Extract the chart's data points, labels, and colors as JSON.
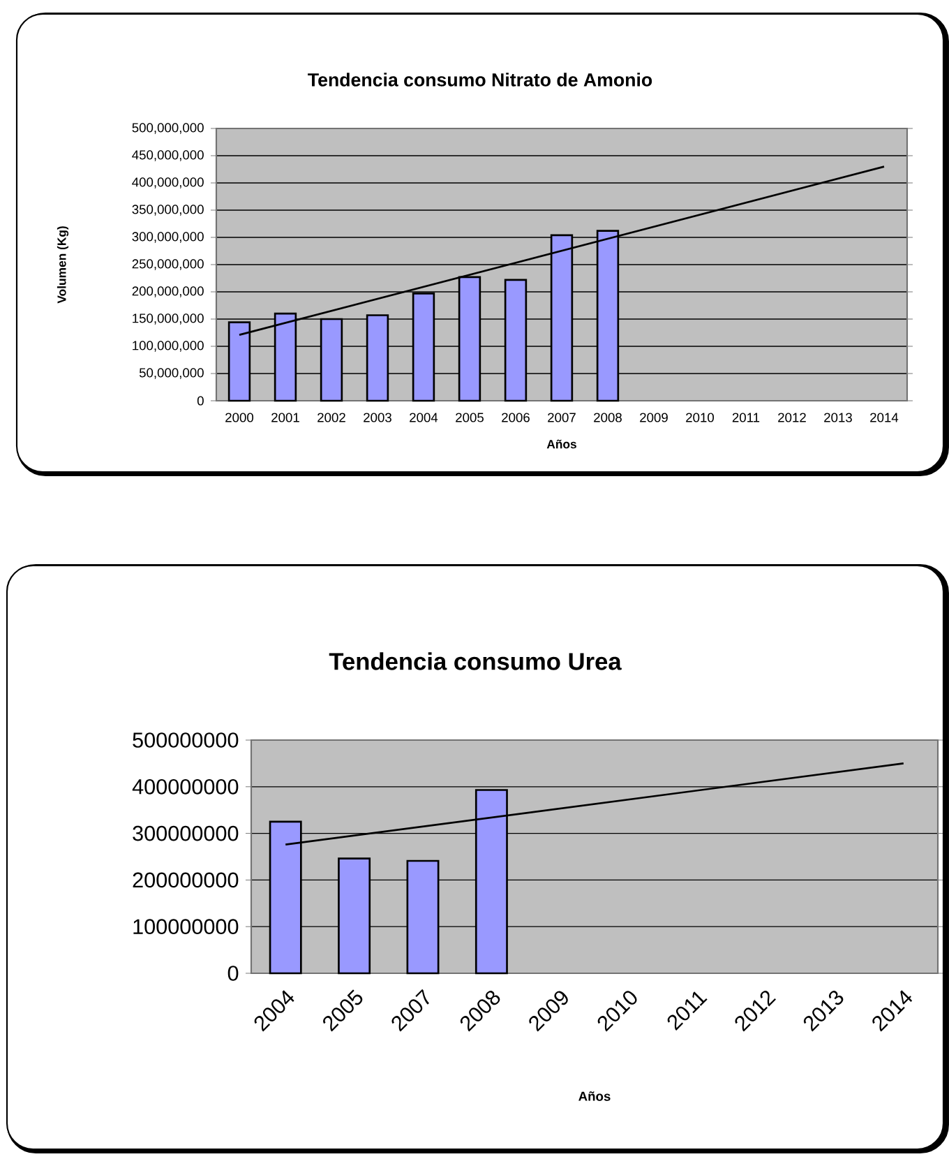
{
  "chart_data": [
    {
      "type": "bar",
      "title": "Tendencia consumo Nitrato de Amonio",
      "xlabel": "Años",
      "ylabel": "Volumen (Kg)",
      "categories": [
        "2000",
        "2001",
        "2002",
        "2003",
        "2004",
        "2005",
        "2006",
        "2007",
        "2008",
        "2009",
        "2010",
        "2011",
        "2012",
        "2013",
        "2014"
      ],
      "series": [
        {
          "color": "#9999ff",
          "values": [
            144000000,
            160000000,
            150000000,
            157000000,
            197000000,
            227000000,
            222000000,
            304000000,
            312000000,
            null,
            null,
            null,
            null,
            null,
            null
          ]
        },
        {
          "type": "line",
          "color": "#000000",
          "values": [
            121000000,
            null,
            null,
            null,
            null,
            null,
            null,
            null,
            null,
            null,
            null,
            null,
            null,
            null,
            430000000
          ]
        }
      ],
      "ylim": [
        0,
        500000000
      ],
      "yticks": [
        {
          "value": 0,
          "label": "0"
        },
        {
          "value": 50000000,
          "label": "50,000,000"
        },
        {
          "value": 100000000,
          "label": "100,000,000"
        },
        {
          "value": 150000000,
          "label": "150,000,000"
        },
        {
          "value": 200000000,
          "label": "200,000,000"
        },
        {
          "value": 250000000,
          "label": "250,000,000"
        },
        {
          "value": 300000000,
          "label": "300,000,000"
        },
        {
          "value": 350000000,
          "label": "350,000,000"
        },
        {
          "value": 400000000,
          "label": "400,000,000"
        },
        {
          "value": 450000000,
          "label": "450,000,000"
        },
        {
          "value": 500000000,
          "label": "500,000,000"
        }
      ],
      "grid": "y"
    },
    {
      "type": "bar",
      "title": "Tendencia consumo Urea",
      "xlabel": "Años",
      "categories": [
        "2004",
        "2005",
        "2007",
        "2008",
        "2009",
        "2010",
        "2011",
        "2012",
        "2013",
        "2014"
      ],
      "series": [
        {
          "color": "#9999ff",
          "values": [
            325000000,
            246000000,
            241000000,
            393000000,
            null,
            null,
            null,
            null,
            null,
            null
          ]
        },
        {
          "type": "line",
          "color": "#000000",
          "values": [
            276000000,
            null,
            null,
            null,
            null,
            null,
            null,
            null,
            null,
            450000000
          ]
        }
      ],
      "ylim": [
        0,
        500000000
      ],
      "yticks": [
        0,
        100000000,
        200000000,
        300000000,
        400000000,
        500000000
      ],
      "grid": "y"
    }
  ]
}
